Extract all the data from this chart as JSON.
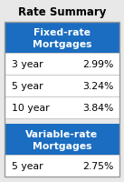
{
  "title": "Rate Summary",
  "header1_line1": "Fixed-rate",
  "header1_line2": "Mortgages",
  "header_bg": "#1A6DC0",
  "header_color": "#ffffff",
  "fixed_rows": [
    [
      "3 year",
      "2.99%"
    ],
    [
      "5 year",
      "3.24%"
    ],
    [
      "10 year",
      "3.84%"
    ]
  ],
  "header2_line1": "Variable-rate",
  "header2_line2": "Mortgages",
  "variable_rows": [
    [
      "5 year",
      "2.75%"
    ]
  ],
  "row_bg": "#ffffff",
  "row_text_color": "#000000",
  "title_fontsize": 8.5,
  "header_fontsize": 7.8,
  "row_fontsize": 7.8,
  "border_color": "#bbbbbb",
  "outer_bg": "#e8e8e8",
  "table_border_color": "#999999"
}
